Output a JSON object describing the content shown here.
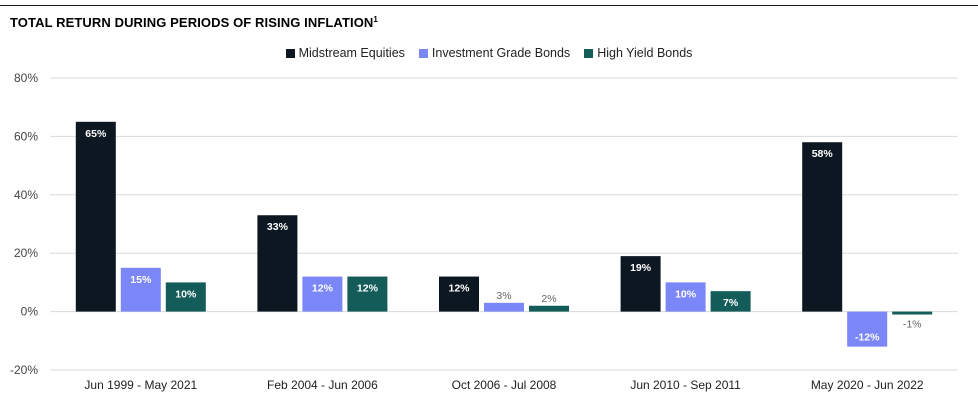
{
  "chart_data": {
    "type": "bar",
    "title": "TOTAL RETURN DURING PERIODS OF RISING INFLATION",
    "title_footnote": "1",
    "categories": [
      "Jun 1999 - May 2021",
      "Feb 2004 - Jun 2006",
      "Oct 2006 - Jul 2008",
      "Jun 2010 - Sep 2011",
      "May 2020 - Jun 2022"
    ],
    "series": [
      {
        "name": "Midstream Equities",
        "color": "#0d1722",
        "values": [
          65,
          33,
          12,
          19,
          58
        ],
        "labels": [
          "65%",
          "33%",
          "12%",
          "19%",
          "58%"
        ]
      },
      {
        "name": "Investment Grade Bonds",
        "color": "#7b86f7",
        "values": [
          15,
          12,
          3,
          10,
          -12
        ],
        "labels": [
          "15%",
          "12%",
          "3%",
          "10%",
          "-12%"
        ]
      },
      {
        "name": "High Yield Bonds",
        "color": "#135c5a",
        "values": [
          10,
          12,
          2,
          7,
          -1
        ],
        "labels": [
          "10%",
          "12%",
          "2%",
          "7%",
          "-1%"
        ]
      }
    ],
    "ylim": [
      -20,
      80
    ],
    "yticks": [
      80,
      60,
      40,
      20,
      0,
      -20
    ],
    "ytick_labels": [
      "80%",
      "60%",
      "40%",
      "20%",
      "0%",
      "-20%"
    ],
    "grid": true,
    "legend": "top-center",
    "xlabel": "",
    "ylabel": ""
  }
}
